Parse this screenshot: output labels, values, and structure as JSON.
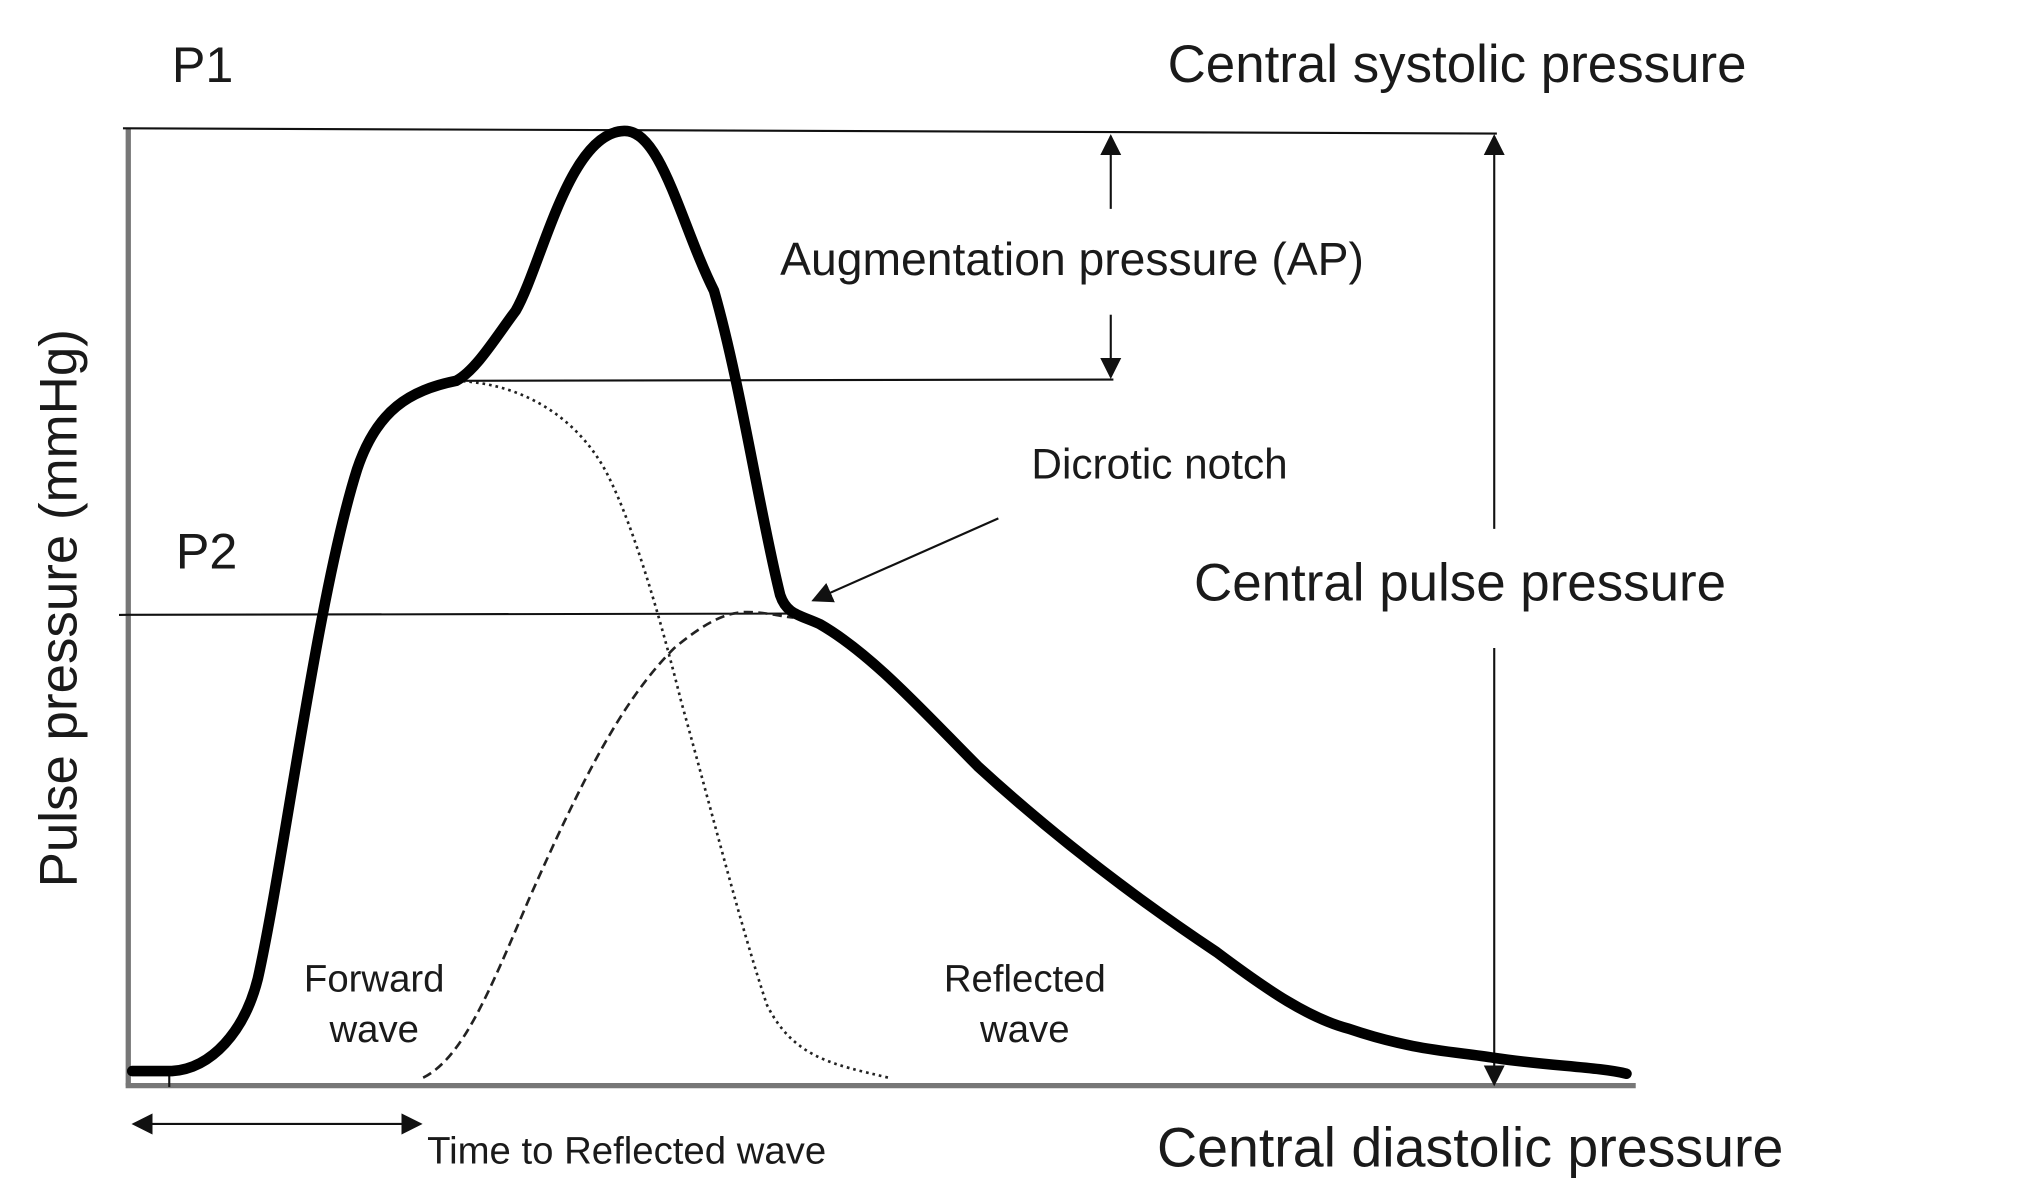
{
  "labels": {
    "p1": "P1",
    "systolic": "Central systolic pressure",
    "augmentation": "Augmentation pressure (AP)",
    "dicrotic_notch": "Dicrotic notch",
    "p2": "P2",
    "pulse_pressure": "Central pulse pressure",
    "y_axis": "Pulse pressure (mmHg)",
    "forward_wave": [
      "Forward",
      "wave"
    ],
    "reflected_wave": [
      "Reflected",
      "wave"
    ],
    "time_to_reflected": "Time to Reflected wave",
    "diastolic": "Central diastolic pressure"
  }
}
